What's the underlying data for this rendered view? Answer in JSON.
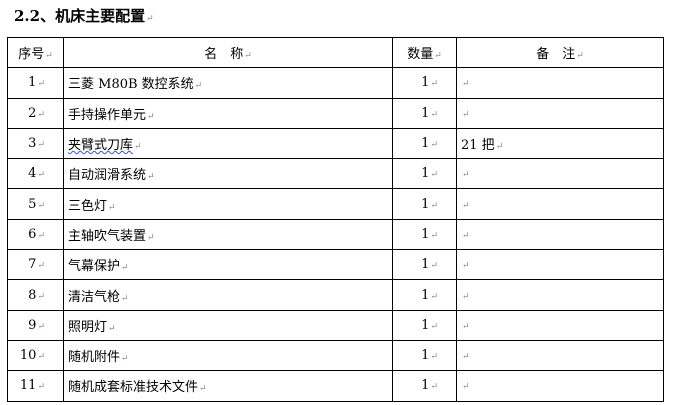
{
  "heading": "2.2、机床主要配置",
  "table": {
    "headers": [
      "序号",
      "名　称",
      "数量",
      "备　注"
    ],
    "rows": [
      {
        "no": "1",
        "name": "三菱 M80B 数控系统",
        "qty": "1",
        "note": ""
      },
      {
        "no": "2",
        "name": "手持操作单元",
        "qty": "1",
        "note": ""
      },
      {
        "no": "3",
        "name": "夹臂式刀库",
        "qty": "1",
        "note": "21 把"
      },
      {
        "no": "4",
        "name": "自动润滑系统",
        "qty": "1",
        "note": ""
      },
      {
        "no": "5",
        "name": "三色灯",
        "qty": "1",
        "note": ""
      },
      {
        "no": "6",
        "name": "主轴吹气装置",
        "qty": "1",
        "note": ""
      },
      {
        "no": "7",
        "name": "气幕保护",
        "qty": "1",
        "note": ""
      },
      {
        "no": "8",
        "name": "清洁气枪",
        "qty": "1",
        "note": ""
      },
      {
        "no": "9",
        "name": "照明灯",
        "qty": "1",
        "note": ""
      },
      {
        "no": "10",
        "name": "随机附件",
        "qty": "1",
        "note": ""
      },
      {
        "no": "11",
        "name": "随机成套标准技术文件",
        "qty": "1",
        "note": ""
      }
    ]
  }
}
